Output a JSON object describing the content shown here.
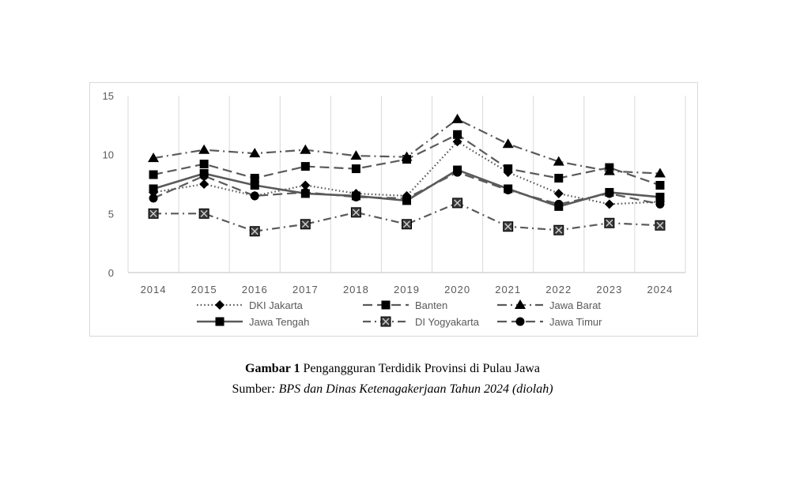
{
  "chart_data": {
    "type": "line",
    "categories": [
      "2014",
      "2015",
      "2016",
      "2017",
      "2018",
      "2019",
      "2020",
      "2021",
      "2022",
      "2023",
      "2024"
    ],
    "ylim": [
      0,
      15
    ],
    "yticks": [
      "0",
      "5",
      "10",
      "15"
    ],
    "grid": "vertical",
    "legend_position": "bottom",
    "series": [
      {
        "name": "DKI Jakarta",
        "marker": "diamond",
        "dash": "dotted",
        "color": "#5a5a5a",
        "values": [
          6.8,
          7.5,
          6.5,
          7.4,
          6.7,
          6.5,
          11.1,
          8.5,
          6.7,
          5.8,
          6.0
        ]
      },
      {
        "name": "Banten",
        "marker": "square",
        "dash": "long-dash",
        "color": "#5a5a5a",
        "values": [
          8.3,
          9.2,
          8.0,
          9.0,
          8.8,
          9.6,
          11.7,
          8.8,
          8.0,
          8.9,
          7.4
        ]
      },
      {
        "name": "Jawa Barat",
        "marker": "triangle",
        "dash": "dash-dot",
        "color": "#5a5a5a",
        "values": [
          9.7,
          10.4,
          10.1,
          10.4,
          9.9,
          9.8,
          13.0,
          10.9,
          9.4,
          8.6,
          8.4
        ]
      },
      {
        "name": "Jawa Tengah",
        "marker": "square",
        "dash": "solid",
        "color": "#5a5a5a",
        "values": [
          7.1,
          8.4,
          7.4,
          6.7,
          6.5,
          6.1,
          8.7,
          7.1,
          5.6,
          6.8,
          6.4
        ]
      },
      {
        "name": "DI Yogyakarta",
        "marker": "x-square",
        "dash": "dash-dot-long",
        "color": "#5a5a5a",
        "values": [
          5.0,
          5.0,
          3.5,
          4.1,
          5.1,
          4.1,
          5.9,
          3.9,
          3.6,
          4.2,
          4.0
        ]
      },
      {
        "name": "Jawa Timur",
        "marker": "circle",
        "dash": "long-dash",
        "color": "#5a5a5a",
        "values": [
          6.3,
          8.2,
          6.5,
          6.8,
          6.4,
          6.3,
          8.5,
          7.0,
          5.8,
          6.7,
          5.8
        ]
      }
    ]
  },
  "caption": {
    "figure_label": "Gambar 1",
    "title": " Pengangguran Terdidik Provinsi di Pulau Jawa",
    "source_prefix": "Sumber",
    "source_text": ": BPS dan Dinas Ketenagakerjaan Tahun 2024 (diolah)"
  }
}
